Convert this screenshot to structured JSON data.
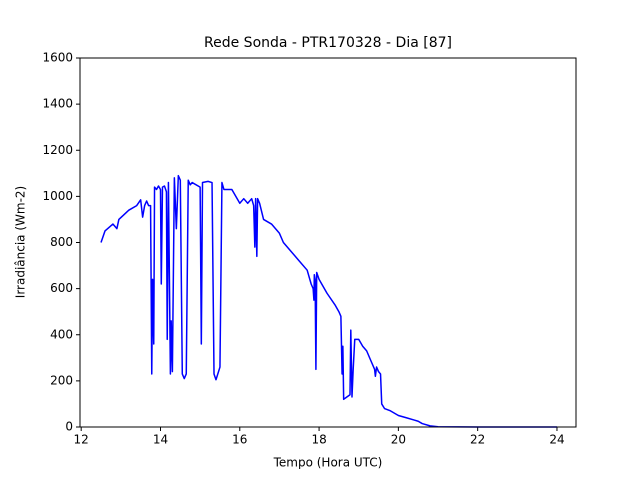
{
  "chart_data": {
    "type": "line",
    "title": "Rede Sonda - PTR170328 - Dia [87]",
    "xlabel": "Tempo (Hora UTC)",
    "ylabel": "Irradiância (Wm-2)",
    "x": [
      12.5,
      12.6,
      12.8,
      12.9,
      12.95,
      13.2,
      13.4,
      13.5,
      13.55,
      13.6,
      13.65,
      13.7,
      13.75,
      13.78,
      13.8,
      13.83,
      13.85,
      13.9,
      13.95,
      14.0,
      14.02,
      14.05,
      14.1,
      14.15,
      14.17,
      14.2,
      14.25,
      14.27,
      14.3,
      14.35,
      14.4,
      14.45,
      14.5,
      14.55,
      14.6,
      14.65,
      14.7,
      14.75,
      14.8,
      15.0,
      15.03,
      15.06,
      15.2,
      15.3,
      15.35,
      15.4,
      15.5,
      15.55,
      15.6,
      15.8,
      15.9,
      16.0,
      16.1,
      16.2,
      16.3,
      16.35,
      16.38,
      16.4,
      16.43,
      16.45,
      16.5,
      16.6,
      16.8,
      17.0,
      17.1,
      17.3,
      17.5,
      17.7,
      17.8,
      17.85,
      17.87,
      17.88,
      17.9,
      17.92,
      17.94,
      18.0,
      18.2,
      18.4,
      18.5,
      18.55,
      18.58,
      18.6,
      18.62,
      18.7,
      18.78,
      18.8,
      18.83,
      18.86,
      18.9,
      19.0,
      19.1,
      19.2,
      19.3,
      19.4,
      19.42,
      19.45,
      19.5,
      19.55,
      19.58,
      19.65,
      19.8,
      20.0,
      20.2,
      20.4,
      20.5,
      20.6,
      20.8,
      21.0,
      22.0,
      24.0
    ],
    "series": [
      {
        "name": "Irradiância",
        "color": "#0000ff",
        "values": [
          800,
          850,
          880,
          860,
          900,
          940,
          960,
          985,
          910,
          960,
          980,
          960,
          960,
          230,
          640,
          360,
          1040,
          1030,
          1045,
          1030,
          620,
          1040,
          1045,
          1020,
          380,
          1060,
          230,
          460,
          240,
          1080,
          860,
          1090,
          1070,
          230,
          210,
          230,
          1070,
          1050,
          1060,
          1040,
          360,
          1060,
          1065,
          1060,
          230,
          205,
          260,
          1060,
          1030,
          1030,
          1000,
          970,
          990,
          970,
          990,
          960,
          780,
          990,
          740,
          990,
          970,
          900,
          880,
          840,
          800,
          760,
          720,
          680,
          620,
          600,
          550,
          660,
          640,
          250,
          670,
          640,
          580,
          530,
          500,
          480,
          230,
          350,
          120,
          130,
          140,
          420,
          130,
          250,
          380,
          380,
          350,
          330,
          290,
          250,
          220,
          260,
          240,
          230,
          100,
          80,
          70,
          50,
          40,
          30,
          25,
          15,
          5,
          1,
          0,
          0
        ]
      }
    ],
    "xlim": [
      11.97,
      24.48
    ],
    "ylim": [
      0,
      1600
    ],
    "xticks": [
      12,
      14,
      16,
      18,
      20,
      22,
      24
    ],
    "yticks": [
      0,
      200,
      400,
      600,
      800,
      1000,
      1200,
      1400,
      1600
    ]
  }
}
